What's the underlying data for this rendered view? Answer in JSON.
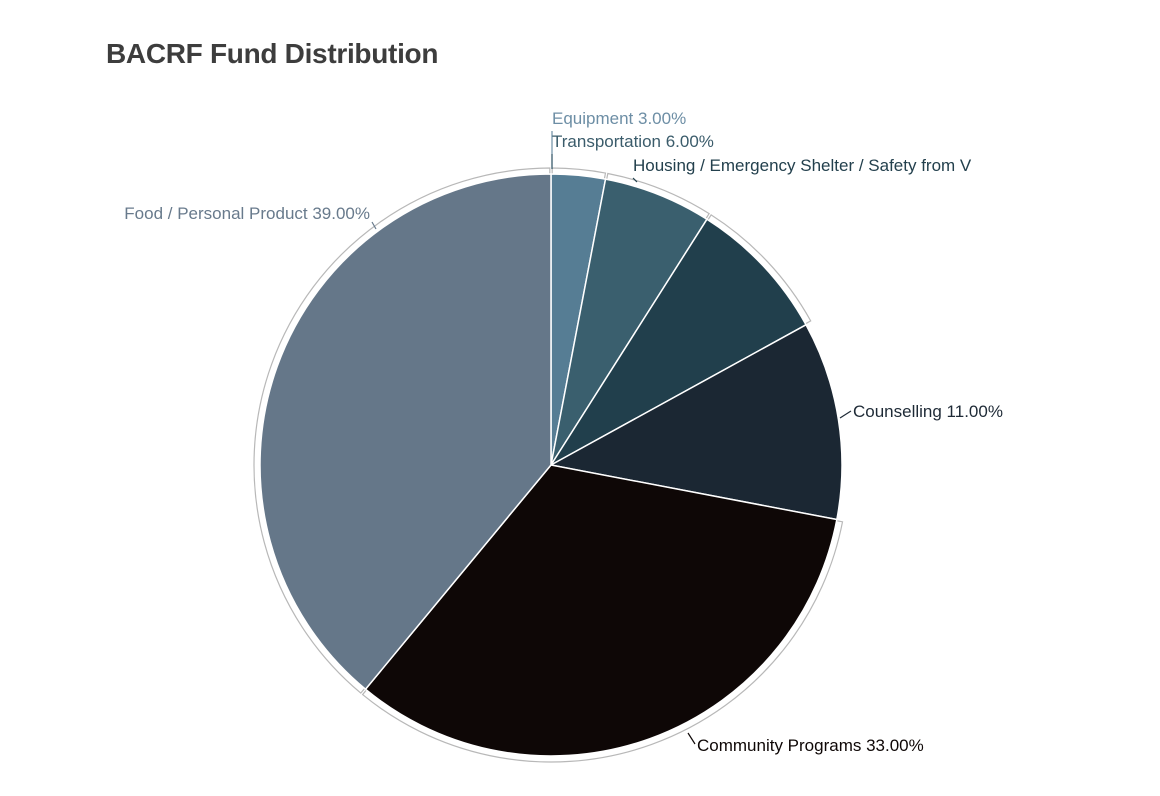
{
  "chart_data": {
    "type": "pie",
    "title": "BACRF Fund Distribution",
    "slices": [
      {
        "label": "Equipment 3.00%",
        "name": "Equipment",
        "value": 3.0,
        "color": "#567d94",
        "label_color": "#6d8ea5"
      },
      {
        "label": "Transportation 6.00%",
        "name": "Transportation",
        "value": 6.0,
        "color": "#3a5f6e",
        "label_color": "#3b5c6b"
      },
      {
        "label": "Housing / Emergency Shelter / Safety from V",
        "name": "Housing / Emergency Shelter / Safety from V",
        "value": 8.0,
        "color": "#213f4c",
        "label_color": "#23404d"
      },
      {
        "label": "Counselling 11.00%",
        "name": "Counselling",
        "value": 11.0,
        "color": "#1b2733",
        "label_color": "#1e2a36"
      },
      {
        "label": "Community Programs 33.00%",
        "name": "Community Programs",
        "value": 33.0,
        "color": "#0e0706",
        "label_color": "#0e0706"
      },
      {
        "label": "Food / Personal Product 39.00%",
        "name": "Food / Personal Product",
        "value": 39.0,
        "color": "#657789",
        "label_color": "#687a8c"
      }
    ],
    "start_angle_deg": 0,
    "direction": "clockwise",
    "legend": "none"
  }
}
